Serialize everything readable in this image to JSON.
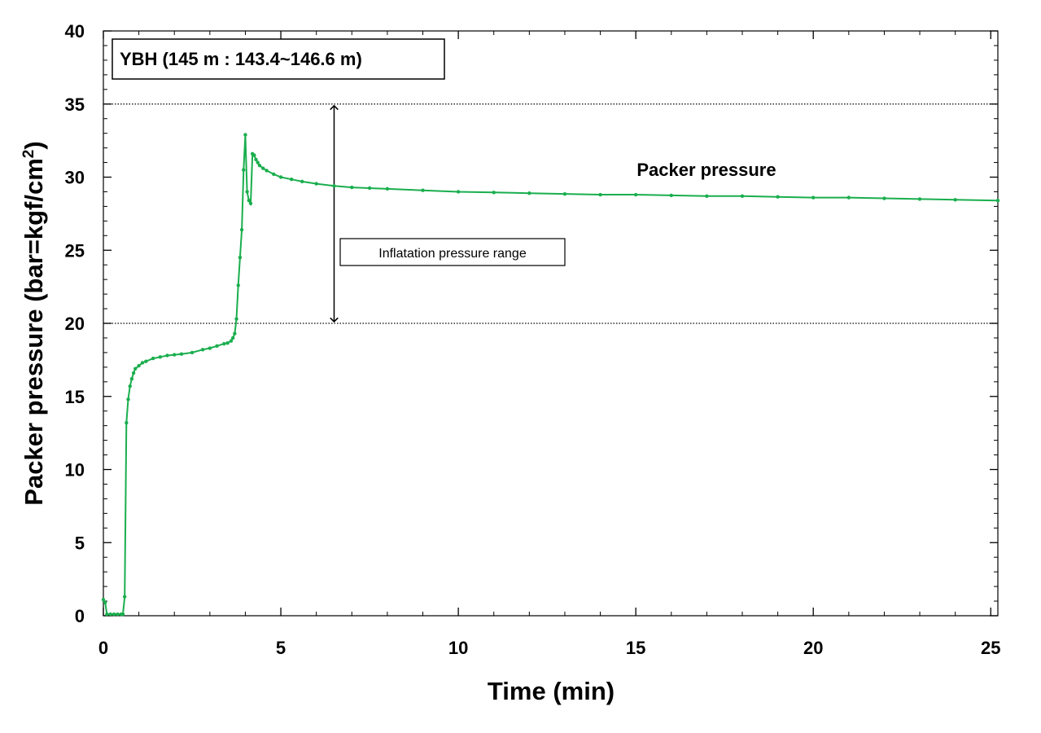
{
  "chart_data": {
    "type": "line",
    "title": "",
    "xlabel": "Time (min)",
    "ylabel_main": "Packer pressure (bar=kgf/cm",
    "ylabel_sup": "2",
    "ylabel_close": ")",
    "xlim": [
      0,
      25.2
    ],
    "ylim": [
      0,
      40
    ],
    "xticks": [
      0,
      5,
      10,
      15,
      20,
      25
    ],
    "yticks": [
      0,
      5,
      10,
      15,
      20,
      25,
      30,
      35,
      40
    ],
    "minor_x_step": 1,
    "minor_y_step": 1,
    "series": [
      {
        "name": "Packer pressure",
        "color": "#1aae4e",
        "x": [
          0.0,
          0.05,
          0.1,
          0.2,
          0.3,
          0.4,
          0.5,
          0.55,
          0.6,
          0.65,
          0.7,
          0.75,
          0.8,
          0.85,
          0.9,
          1.0,
          1.1,
          1.2,
          1.4,
          1.6,
          1.8,
          2.0,
          2.2,
          2.5,
          2.8,
          3.0,
          3.2,
          3.4,
          3.5,
          3.6,
          3.65,
          3.7,
          3.75,
          3.8,
          3.85,
          3.9,
          3.95,
          4.0,
          4.05,
          4.1,
          4.15,
          4.2,
          4.25,
          4.3,
          4.35,
          4.4,
          4.5,
          4.6,
          4.8,
          5.0,
          5.3,
          5.6,
          6.0,
          6.5,
          7.0,
          7.5,
          8.0,
          9.0,
          10.0,
          11.0,
          12.0,
          13.0,
          14.0,
          15.0,
          16.0,
          17.0,
          18.0,
          19.0,
          20.0,
          21.0,
          22.0,
          23.0,
          24.0,
          25.2
        ],
        "y": [
          1.1,
          0.9,
          0.1,
          0.1,
          0.1,
          0.1,
          0.1,
          0.1,
          1.3,
          13.2,
          14.8,
          15.7,
          16.2,
          16.6,
          16.9,
          17.1,
          17.3,
          17.4,
          17.6,
          17.7,
          17.8,
          17.85,
          17.9,
          18.0,
          18.2,
          18.3,
          18.45,
          18.6,
          18.65,
          18.8,
          19.0,
          19.3,
          20.3,
          22.6,
          24.5,
          26.4,
          30.5,
          32.9,
          29.0,
          28.4,
          28.2,
          31.6,
          31.5,
          31.2,
          31.0,
          30.8,
          30.6,
          30.45,
          30.2,
          30.0,
          29.85,
          29.7,
          29.55,
          29.4,
          29.3,
          29.25,
          29.2,
          29.1,
          29.0,
          28.95,
          28.9,
          28.85,
          28.8,
          28.8,
          28.75,
          28.7,
          28.7,
          28.65,
          28.6,
          28.6,
          28.55,
          28.5,
          28.45,
          28.4
        ]
      }
    ],
    "reference_lines": [
      {
        "name": "upper",
        "y": 35
      },
      {
        "name": "lower",
        "y": 20
      }
    ],
    "range_arrow": {
      "x": 6.5,
      "y_from": 20,
      "y_to": 35
    },
    "annotations": {
      "info_box": "YBH (145 m : 143.4~146.6 m)",
      "range_label": "Inflatation pressure range",
      "series_label": "Packer pressure"
    }
  }
}
